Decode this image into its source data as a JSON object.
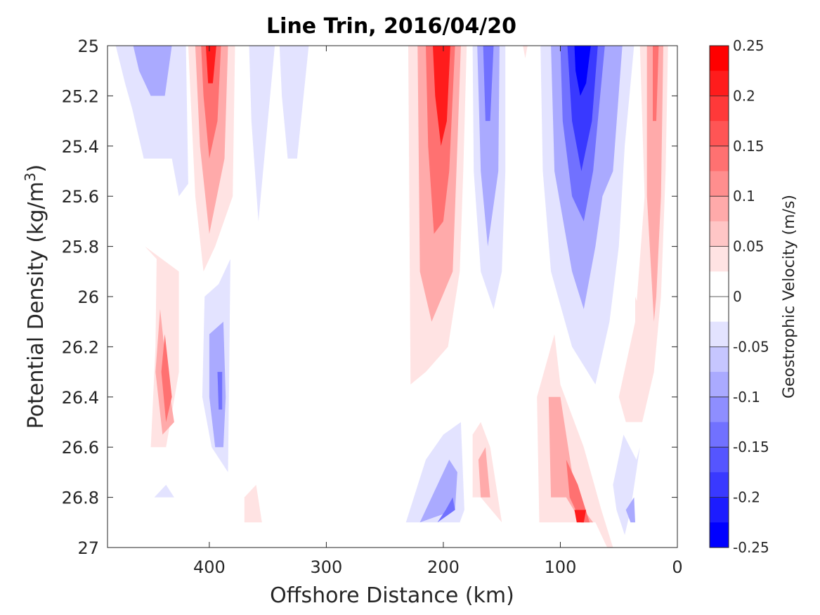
{
  "chart_data": {
    "type": "contour",
    "title": "Line Trin, 2016/04/20",
    "xlabel": "Offshore Distance (km)",
    "ylabel": "Potential Density (kg/m",
    "ylabel_sup": "3",
    "ylabel_end": ")",
    "xlim": [
      487,
      0
    ],
    "ylim": [
      25,
      27
    ],
    "x_ticks": [
      400,
      300,
      200,
      100,
      0
    ],
    "x_ticklabels": [
      "400",
      "300",
      "200",
      "100",
      "0"
    ],
    "y_ticks": [
      25,
      25.2,
      25.4,
      25.6,
      25.8,
      26,
      26.2,
      26.4,
      26.6,
      26.8,
      27
    ],
    "y_ticklabels": [
      "25",
      "25.2",
      "25.4",
      "25.6",
      "25.8",
      "26",
      "26.2",
      "26.4",
      "26.6",
      "26.8",
      "27"
    ],
    "colorbar": {
      "label": "Geostrophic Velocity (m/s)",
      "range": [
        -0.25,
        0.25
      ],
      "ticks": [
        0.25,
        0.2,
        0.15,
        0.1,
        0.05,
        0,
        -0.05,
        -0.1,
        -0.15,
        -0.2,
        -0.25
      ],
      "ticklabels": [
        "0.25",
        "0.2",
        "0.15",
        "0.1",
        "0.05",
        "0",
        "-0.05",
        "-0.1",
        "-0.15",
        "-0.2",
        "-0.25"
      ],
      "levels_top_to_bottom": [
        "#ff0000",
        "#ff1c1c",
        "#ff3939",
        "#ff5555",
        "#ff7171",
        "#ff8e8e",
        "#ffaaaa",
        "#ffc6c6",
        "#ffe3e3",
        "#ffffff",
        "#ffffff",
        "#e3e3ff",
        "#c6c6ff",
        "#aaaaff",
        "#8e8eff",
        "#7171ff",
        "#5555ff",
        "#3939ff",
        "#1c1cff",
        "#0000ff"
      ]
    },
    "contour_regions": [
      {
        "level": -0.05,
        "pts": [
          [
            480,
            25
          ],
          [
            420,
            25
          ],
          [
            418,
            25.55
          ],
          [
            426,
            25.6
          ],
          [
            432,
            25.45
          ],
          [
            456,
            25.45
          ],
          [
            466,
            25.25
          ],
          [
            472,
            25.15
          ]
        ]
      },
      {
        "level": -0.1,
        "pts": [
          [
            465,
            25
          ],
          [
            432,
            25
          ],
          [
            438,
            25.2
          ],
          [
            450,
            25.2
          ],
          [
            460,
            25.1
          ]
        ]
      },
      {
        "level": 0.05,
        "pts": [
          [
            418,
            25
          ],
          [
            378,
            25
          ],
          [
            380,
            25.6
          ],
          [
            395,
            25.8
          ],
          [
            405,
            25.9
          ],
          [
            412,
            25.6
          ]
        ]
      },
      {
        "level": 0.1,
        "pts": [
          [
            412,
            25
          ],
          [
            384,
            25
          ],
          [
            387,
            25.45
          ],
          [
            400,
            25.75
          ],
          [
            408,
            25.4
          ]
        ]
      },
      {
        "level": 0.15,
        "pts": [
          [
            407,
            25
          ],
          [
            390,
            25
          ],
          [
            393,
            25.3
          ],
          [
            400,
            25.45
          ],
          [
            405,
            25.2
          ]
        ]
      },
      {
        "level": 0.2,
        "pts": [
          [
            403,
            25
          ],
          [
            394,
            25
          ],
          [
            397,
            25.15
          ],
          [
            401,
            25.15
          ]
        ]
      },
      {
        "level": -0.05,
        "pts": [
          [
            366,
            25
          ],
          [
            344,
            25
          ],
          [
            350,
            25.3
          ],
          [
            358,
            25.7
          ],
          [
            364,
            25.3
          ]
        ]
      },
      {
        "level": -0.05,
        "pts": [
          [
            340,
            25
          ],
          [
            315,
            25
          ],
          [
            325,
            25.45
          ],
          [
            333,
            25.45
          ],
          [
            338,
            25.2
          ]
        ]
      },
      {
        "level": 0.05,
        "pts": [
          [
            455,
            25.8
          ],
          [
            445,
            25.85
          ],
          [
            446,
            26.2
          ],
          [
            450,
            26.6
          ],
          [
            437,
            26.6
          ],
          [
            426,
            26.3
          ],
          [
            426,
            25.9
          ]
        ]
      },
      {
        "level": 0.1,
        "pts": [
          [
            442,
            26.05
          ],
          [
            435,
            26.35
          ],
          [
            430,
            26.5
          ],
          [
            440,
            26.55
          ],
          [
            446,
            26.3
          ]
        ]
      },
      {
        "level": 0.15,
        "pts": [
          [
            438,
            26.15
          ],
          [
            432,
            26.4
          ],
          [
            437,
            26.5
          ],
          [
            441,
            26.3
          ]
        ]
      },
      {
        "level": -0.05,
        "pts": [
          [
            404,
            26.0
          ],
          [
            392,
            25.95
          ],
          [
            382,
            25.85
          ],
          [
            383,
            26.3
          ],
          [
            384,
            26.7
          ],
          [
            398,
            26.6
          ],
          [
            406,
            26.4
          ]
        ]
      },
      {
        "level": -0.1,
        "pts": [
          [
            400,
            26.15
          ],
          [
            388,
            26.1
          ],
          [
            386,
            26.4
          ],
          [
            388,
            26.6
          ],
          [
            395,
            26.6
          ],
          [
            400,
            26.4
          ]
        ]
      },
      {
        "level": -0.15,
        "pts": [
          [
            393,
            26.3
          ],
          [
            389,
            26.3
          ],
          [
            389,
            26.45
          ],
          [
            392,
            26.45
          ]
        ]
      },
      {
        "level": 0.05,
        "pts": [
          [
            230,
            25
          ],
          [
            180,
            25
          ],
          [
            183,
            25.5
          ],
          [
            186,
            25.9
          ],
          [
            196,
            26.2
          ],
          [
            215,
            26.3
          ],
          [
            228,
            26.35
          ]
        ]
      },
      {
        "level": 0.1,
        "pts": [
          [
            222,
            25
          ],
          [
            185,
            25
          ],
          [
            188,
            25.4
          ],
          [
            192,
            25.9
          ],
          [
            210,
            26.1
          ],
          [
            220,
            25.9
          ]
        ]
      },
      {
        "level": 0.15,
        "pts": [
          [
            215,
            25
          ],
          [
            190,
            25
          ],
          [
            195,
            25.5
          ],
          [
            200,
            25.7
          ],
          [
            208,
            25.75
          ],
          [
            213,
            25.4
          ]
        ]
      },
      {
        "level": 0.2,
        "pts": [
          [
            209,
            25
          ],
          [
            194,
            25
          ],
          [
            197,
            25.3
          ],
          [
            202,
            25.4
          ],
          [
            207,
            25.2
          ]
        ]
      },
      {
        "level": -0.05,
        "pts": [
          [
            175,
            25
          ],
          [
            147,
            25
          ],
          [
            147,
            25.5
          ],
          [
            150,
            25.9
          ],
          [
            157,
            26.05
          ],
          [
            168,
            25.9
          ],
          [
            174,
            25.5
          ]
        ]
      },
      {
        "level": -0.1,
        "pts": [
          [
            171,
            25
          ],
          [
            152,
            25
          ],
          [
            153,
            25.5
          ],
          [
            162,
            25.8
          ],
          [
            168,
            25.5
          ]
        ]
      },
      {
        "level": -0.15,
        "pts": [
          [
            166,
            25
          ],
          [
            157,
            25
          ],
          [
            160,
            25.3
          ],
          [
            164,
            25.3
          ]
        ]
      },
      {
        "level": 0.05,
        "pts": [
          [
            132,
            25
          ],
          [
            128,
            25
          ],
          [
            130,
            25.05
          ]
        ]
      },
      {
        "level": -0.05,
        "pts": [
          [
            117,
            25
          ],
          [
            37,
            25
          ],
          [
            45,
            25.4
          ],
          [
            50,
            25.8
          ],
          [
            58,
            26.1
          ],
          [
            70,
            26.35
          ],
          [
            90,
            26.2
          ],
          [
            108,
            25.9
          ],
          [
            115,
            25.5
          ]
        ]
      },
      {
        "level": -0.1,
        "pts": [
          [
            108,
            25
          ],
          [
            47,
            25
          ],
          [
            55,
            25.5
          ],
          [
            64,
            25.6
          ],
          [
            70,
            25.8
          ],
          [
            80,
            26.05
          ],
          [
            90,
            25.9
          ],
          [
            105,
            25.5
          ]
        ]
      },
      {
        "level": -0.15,
        "pts": [
          [
            100,
            25
          ],
          [
            62,
            25
          ],
          [
            68,
            25.3
          ],
          [
            72,
            25.5
          ],
          [
            80,
            25.7
          ],
          [
            90,
            25.6
          ],
          [
            98,
            25.3
          ]
        ]
      },
      {
        "level": -0.2,
        "pts": [
          [
            94,
            25
          ],
          [
            68,
            25
          ],
          [
            73,
            25.3
          ],
          [
            82,
            25.5
          ],
          [
            90,
            25.3
          ]
        ]
      },
      {
        "level": -0.25,
        "pts": [
          [
            88,
            25
          ],
          [
            74,
            25
          ],
          [
            78,
            25.15
          ],
          [
            83,
            25.2
          ],
          [
            87,
            25.1
          ]
        ]
      },
      {
        "level": 0.05,
        "pts": [
          [
            32,
            25
          ],
          [
            8,
            25
          ],
          [
            10,
            25.5
          ],
          [
            14,
            26.0
          ],
          [
            20,
            26.3
          ],
          [
            30,
            26.5
          ],
          [
            44,
            26.5
          ],
          [
            50,
            26.4
          ],
          [
            36,
            26.1
          ],
          [
            28,
            25.6
          ]
        ]
      },
      {
        "level": 0.1,
        "pts": [
          [
            26,
            25
          ],
          [
            12,
            25
          ],
          [
            14,
            25.6
          ],
          [
            18,
            26.0
          ],
          [
            20,
            26.1
          ],
          [
            26,
            25.6
          ]
        ]
      },
      {
        "level": 0.15,
        "pts": [
          [
            21,
            25
          ],
          [
            16,
            25
          ],
          [
            18,
            25.3
          ],
          [
            21,
            25.3
          ]
        ]
      },
      {
        "level": 0.05,
        "pts": [
          [
            36,
            26.0
          ],
          [
            28,
            26.1
          ],
          [
            26,
            26.35
          ],
          [
            32,
            26.4
          ],
          [
            36,
            26.2
          ]
        ]
      },
      {
        "level": -0.05,
        "pts": [
          [
            52,
            26.85
          ],
          [
            45,
            26.95
          ],
          [
            40,
            26.85
          ],
          [
            32,
            26.6
          ],
          [
            35,
            26.65
          ],
          [
            46,
            26.55
          ],
          [
            55,
            26.75
          ]
        ]
      },
      {
        "level": -0.1,
        "pts": [
          [
            44,
            26.85
          ],
          [
            40,
            26.9
          ],
          [
            36,
            26.9
          ],
          [
            37,
            26.8
          ]
        ]
      },
      {
        "level": 0.05,
        "pts": [
          [
            120,
            26.4
          ],
          [
            105,
            26.15
          ],
          [
            100,
            26.35
          ],
          [
            80,
            26.6
          ],
          [
            65,
            26.85
          ],
          [
            55,
            27.0
          ],
          [
            60,
            27.0
          ],
          [
            70,
            26.9
          ],
          [
            85,
            26.9
          ],
          [
            118,
            26.9
          ]
        ]
      },
      {
        "level": 0.1,
        "pts": [
          [
            110,
            26.4
          ],
          [
            100,
            26.4
          ],
          [
            90,
            26.7
          ],
          [
            80,
            26.85
          ],
          [
            72,
            26.9
          ],
          [
            82,
            26.9
          ],
          [
            95,
            26.8
          ],
          [
            108,
            26.8
          ]
        ]
      },
      {
        "level": 0.15,
        "pts": [
          [
            95,
            26.65
          ],
          [
            85,
            26.75
          ],
          [
            75,
            26.9
          ],
          [
            82,
            26.9
          ],
          [
            92,
            26.8
          ]
        ]
      },
      {
        "level": 0.2,
        "pts": [
          [
            88,
            26.85
          ],
          [
            78,
            26.85
          ],
          [
            80,
            26.9
          ],
          [
            86,
            26.9
          ]
        ]
      },
      {
        "level": -0.05,
        "pts": [
          [
            232,
            26.9
          ],
          [
            215,
            26.65
          ],
          [
            200,
            26.55
          ],
          [
            185,
            26.5
          ],
          [
            182,
            26.85
          ],
          [
            186,
            26.9
          ]
        ]
      },
      {
        "level": -0.1,
        "pts": [
          [
            220,
            26.9
          ],
          [
            205,
            26.75
          ],
          [
            195,
            26.65
          ],
          [
            188,
            26.7
          ],
          [
            190,
            26.85
          ]
        ]
      },
      {
        "level": -0.15,
        "pts": [
          [
            205,
            26.9
          ],
          [
            198,
            26.85
          ],
          [
            192,
            26.8
          ],
          [
            190,
            26.85
          ]
        ]
      },
      {
        "level": 0.05,
        "pts": [
          [
            175,
            26.55
          ],
          [
            168,
            26.5
          ],
          [
            160,
            26.6
          ],
          [
            155,
            26.75
          ],
          [
            150,
            26.9
          ],
          [
            168,
            26.8
          ],
          [
            175,
            26.8
          ]
        ]
      },
      {
        "level": 0.1,
        "pts": [
          [
            170,
            26.65
          ],
          [
            164,
            26.6
          ],
          [
            160,
            26.8
          ],
          [
            168,
            26.8
          ]
        ]
      },
      {
        "level": 0.05,
        "pts": [
          [
            370,
            26.8
          ],
          [
            360,
            26.75
          ],
          [
            355,
            26.9
          ],
          [
            370,
            26.9
          ]
        ]
      },
      {
        "level": -0.05,
        "pts": [
          [
            447,
            26.8
          ],
          [
            437,
            26.75
          ],
          [
            430,
            26.8
          ]
        ]
      }
    ]
  }
}
